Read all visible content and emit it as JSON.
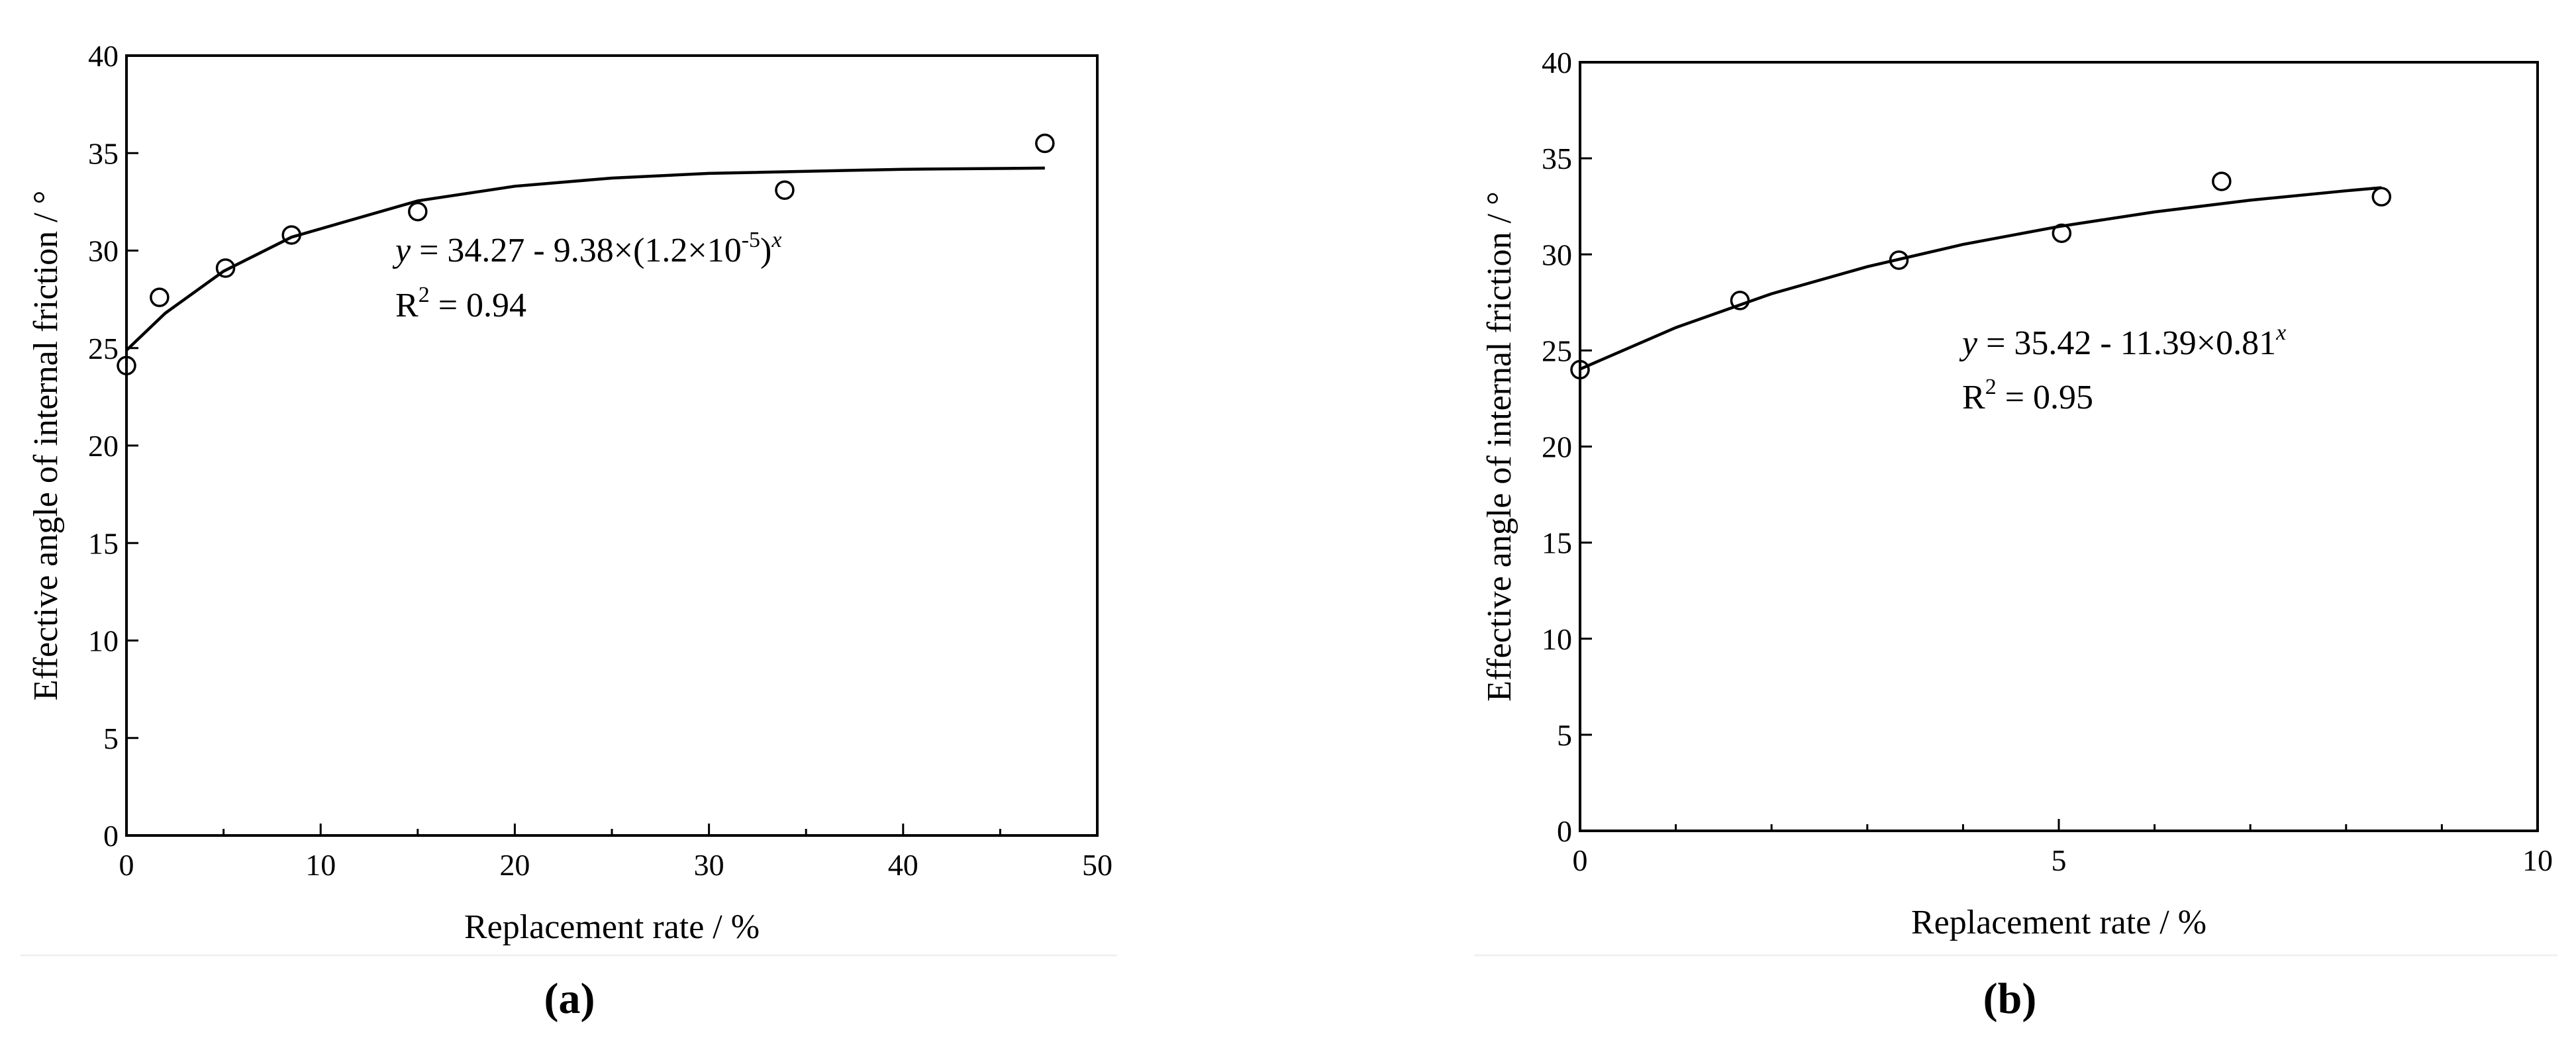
{
  "chart_data": [
    {
      "type": "scatter",
      "panel_label": "(a)",
      "xlabel": "Replacement rate / %",
      "ylabel": "Effective angle of internal friction / °",
      "xlim": [
        0,
        50
      ],
      "ylim": [
        0,
        40
      ],
      "xticks": [
        0,
        10,
        20,
        30,
        40,
        50
      ],
      "xminorticks": [
        5,
        15,
        25,
        35,
        45
      ],
      "yticks": [
        0,
        5,
        10,
        15,
        20,
        25,
        30,
        35,
        40
      ],
      "series": [
        {
          "type": "scatter",
          "color": "#000000",
          "x": [
            0,
            1.7,
            5.1,
            8.5,
            15,
            33.9,
            47.3
          ],
          "values": [
            24.1,
            27.6,
            29.1,
            30.8,
            32.0,
            33.1,
            35.5
          ]
        },
        {
          "type": "line",
          "color": "#000000",
          "x": [
            0,
            2,
            5,
            8.5,
            15,
            20,
            25,
            30,
            40,
            47.3
          ],
          "values": [
            24.89,
            26.79,
            28.94,
            30.69,
            32.55,
            33.3,
            33.72,
            33.96,
            34.17,
            34.23
          ]
        }
      ],
      "annotations": [
        {
          "runs": [
            {
              "text": "y",
              "italic": true
            },
            {
              "text": " = 34.27 - 9.38×(1.2×10"
            },
            {
              "text": "-5",
              "superscript": true
            },
            {
              "text": ")"
            },
            {
              "text": "x",
              "italic": true,
              "superscript": true
            }
          ]
        },
        {
          "runs": [
            {
              "text": "R"
            },
            {
              "text": "2",
              "superscript": true
            },
            {
              "text": " = 0.94"
            }
          ]
        }
      ]
    },
    {
      "type": "scatter",
      "panel_label": "(b)",
      "xlabel": "Replacement rate / %",
      "ylabel": "Effective angle of internal friction / °",
      "xlim": [
        0,
        10
      ],
      "ylim": [
        0,
        40
      ],
      "xticks": [
        0,
        5,
        10
      ],
      "xminorticks": [
        1,
        2,
        3,
        4,
        6,
        7,
        8,
        9
      ],
      "yticks": [
        0,
        5,
        10,
        15,
        20,
        25,
        30,
        35,
        40
      ],
      "series": [
        {
          "type": "scatter",
          "color": "#000000",
          "x": [
            0,
            1.67,
            3.33,
            5.03,
            6.7,
            8.37
          ],
          "values": [
            24.0,
            27.6,
            29.7,
            31.1,
            33.8,
            33.0
          ]
        },
        {
          "type": "line",
          "color": "#000000",
          "x": [
            0,
            1,
            2,
            3,
            4,
            5,
            6,
            7,
            8,
            8.37
          ],
          "values": [
            24.03,
            26.19,
            27.95,
            29.36,
            30.52,
            31.45,
            32.21,
            32.82,
            33.31,
            33.47
          ]
        }
      ],
      "annotations": [
        {
          "runs": [
            {
              "text": "y",
              "italic": true
            },
            {
              "text": " = 35.42 - 11.39×0.81"
            },
            {
              "text": "x",
              "italic": true,
              "superscript": true
            }
          ]
        },
        {
          "runs": [
            {
              "text": "R"
            },
            {
              "text": "2",
              "superscript": true
            },
            {
              "text": " = 0.95"
            }
          ]
        }
      ]
    }
  ]
}
